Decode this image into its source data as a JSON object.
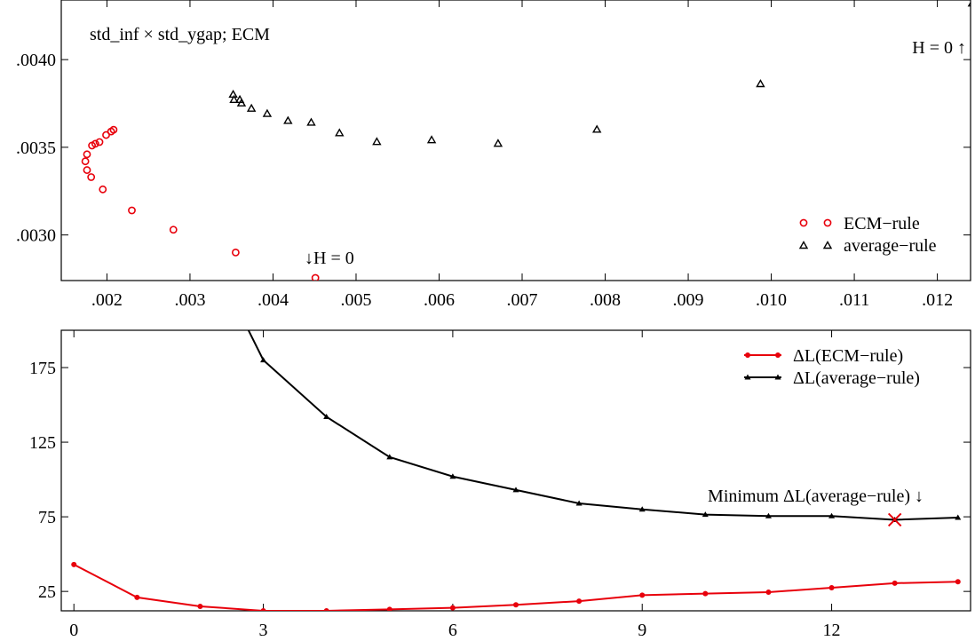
{
  "chart_data": [
    {
      "type": "scatter",
      "title": "std_inf × std_ygap; ECM",
      "xlabel": "",
      "ylabel": "",
      "xlim": [
        0.00145,
        0.0124
      ],
      "ylim": [
        0.00274,
        0.00434
      ],
      "x_tick_labels": [
        ".002",
        ".003",
        ".004",
        ".005",
        ".006",
        ".007",
        ".008",
        ".009",
        ".010",
        ".011",
        ".012"
      ],
      "x_ticks": [
        0.002,
        0.003,
        0.004,
        0.005,
        0.006,
        0.007,
        0.008,
        0.009,
        0.01,
        0.011,
        0.012
      ],
      "y_tick_labels": [
        ".0030",
        ".0035",
        ".0040"
      ],
      "y_ticks": [
        0.003,
        0.0035,
        0.004
      ],
      "legend_position": "bottom-right",
      "series": [
        {
          "name": "ECM−rule",
          "color": "#e8000b",
          "marker": "circle",
          "x": [
            0.00451,
            0.00355,
            0.0028,
            0.0023,
            0.00195,
            0.00181,
            0.00176,
            0.00174,
            0.00176,
            0.00182,
            0.00186,
            0.00191,
            0.00199,
            0.00205,
            0.00208
          ],
          "y": [
            0.002755,
            0.0029,
            0.00303,
            0.00314,
            0.00326,
            0.00333,
            0.00337,
            0.00342,
            0.00346,
            0.00351,
            0.00352,
            0.00353,
            0.00357,
            0.00359,
            0.0036
          ]
        },
        {
          "name": "average−rule",
          "color": "#000000",
          "marker": "triangle",
          "x": [
            0.01242,
            0.00987,
            0.0079,
            0.00671,
            0.00591,
            0.00525,
            0.0048,
            0.00446,
            0.00418,
            0.00393,
            0.00374,
            0.00362,
            0.0036,
            0.00353,
            0.00352
          ],
          "y": [
            0.00432,
            0.00386,
            0.0036,
            0.00352,
            0.00354,
            0.00353,
            0.00358,
            0.00364,
            0.00365,
            0.00369,
            0.00372,
            0.00375,
            0.00377,
            0.00377,
            0.0038
          ]
        }
      ],
      "annotations": [
        {
          "text": "↓H = 0",
          "x": 0.00451,
          "y": 0.002755
        },
        {
          "text": "H = 0 ↑",
          "x": 0.01242,
          "y": 0.00432
        }
      ]
    },
    {
      "type": "line",
      "title": "",
      "xlabel": "",
      "ylabel": "",
      "xlim": [
        -0.2,
        14.2
      ],
      "ylim": [
        12,
        200
      ],
      "x": [
        0,
        1,
        2,
        3,
        4,
        5,
        6,
        7,
        8,
        9,
        10,
        11,
        12,
        13,
        14
      ],
      "x_tick_labels": [
        "0",
        "3",
        "6",
        "9",
        "12"
      ],
      "x_ticks": [
        0,
        3,
        6,
        9,
        12
      ],
      "y_tick_labels": [
        "25",
        "75",
        "125",
        "175"
      ],
      "y_ticks": [
        25,
        75,
        125,
        175
      ],
      "legend_position": "top-right",
      "series": [
        {
          "name": "ΔL(ECM−rule)",
          "color": "#e8000b",
          "marker": "circle",
          "values": [
            43,
            21,
            15,
            12,
            12,
            13,
            14,
            16,
            18.5,
            22.5,
            23.5,
            24.5,
            27.5,
            30.5,
            31.5
          ]
        },
        {
          "name": "ΔL(average−rule)",
          "color": "#000000",
          "marker": "triangle",
          "values": [
            null,
            null,
            265,
            180,
            142,
            115,
            102,
            93,
            84,
            80,
            76.5,
            75.5,
            75.5,
            73,
            74.5
          ]
        }
      ],
      "annotations": [
        {
          "text": "Minimum ΔL(average−rule) ↓",
          "x": 13,
          "y": 73,
          "marker": "×"
        }
      ]
    }
  ]
}
